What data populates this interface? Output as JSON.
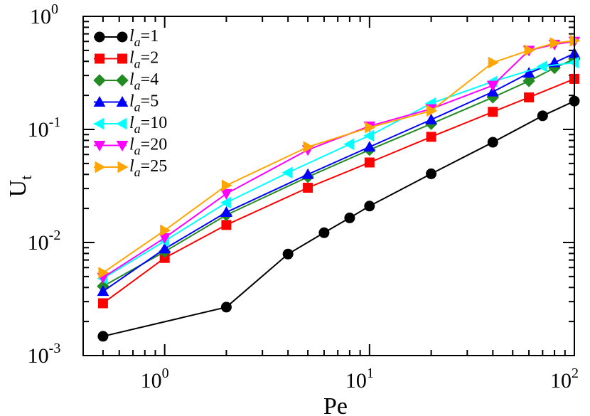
{
  "chart_data": {
    "type": "line",
    "x_scale": "log",
    "y_scale": "log",
    "xlabel": "Pe",
    "ylabel": {
      "main": "U",
      "sub": "t"
    },
    "xlim": [
      0.4,
      100
    ],
    "ylim": [
      0.001,
      1
    ],
    "x_ticks": [
      {
        "value": 1,
        "base": "10",
        "exp": "0"
      },
      {
        "value": 10,
        "base": "10",
        "exp": "1"
      },
      {
        "value": 100,
        "base": "10",
        "exp": "2"
      }
    ],
    "y_ticks": [
      {
        "value": 0.001,
        "base": "10",
        "exp": "-3"
      },
      {
        "value": 0.01,
        "base": "10",
        "exp": "-2"
      },
      {
        "value": 0.1,
        "base": "10",
        "exp": "-1"
      },
      {
        "value": 1,
        "base": "10",
        "exp": "0"
      }
    ],
    "legend_position": "top-left",
    "series": [
      {
        "name": "la=1",
        "legend_var": "l",
        "legend_sub": "a",
        "legend_value": "=1",
        "color": "#000000",
        "marker": "circle",
        "x": [
          0.5,
          2,
          4,
          6,
          8,
          10,
          20,
          40,
          70,
          100
        ],
        "y": [
          0.00148,
          0.00268,
          0.0079,
          0.0122,
          0.0165,
          0.021,
          0.0405,
          0.077,
          0.132,
          0.178
        ]
      },
      {
        "name": "la=2",
        "legend_var": "l",
        "legend_sub": "a",
        "legend_value": "=2",
        "color": "#ff0000",
        "marker": "square",
        "x": [
          0.5,
          1,
          2,
          5,
          10,
          20,
          40,
          60,
          100
        ],
        "y": [
          0.0029,
          0.0073,
          0.0143,
          0.0305,
          0.051,
          0.086,
          0.143,
          0.192,
          0.28
        ]
      },
      {
        "name": "la=4",
        "legend_var": "l",
        "legend_sub": "a",
        "legend_value": "=4",
        "color": "#228b22",
        "marker": "diamond",
        "x": [
          0.5,
          1,
          2,
          5,
          10,
          20,
          40,
          60,
          80,
          100
        ],
        "y": [
          0.0041,
          0.0083,
          0.0175,
          0.038,
          0.066,
          0.112,
          0.192,
          0.268,
          0.35,
          0.42
        ]
      },
      {
        "name": "la=5",
        "legend_var": "l",
        "legend_sub": "a",
        "legend_value": "=5",
        "color": "#0000ff",
        "marker": "triangle-up",
        "x": [
          0.5,
          1,
          2,
          5,
          10,
          20,
          40,
          60,
          80,
          100
        ],
        "y": [
          0.0037,
          0.0088,
          0.0185,
          0.04,
          0.07,
          0.122,
          0.215,
          0.315,
          0.39,
          0.47
        ]
      },
      {
        "name": "la=10",
        "legend_var": "l",
        "legend_sub": "a",
        "legend_value": "=10",
        "color": "#00ffff",
        "marker": "triangle-left",
        "x": [
          0.5,
          1,
          2,
          4,
          8,
          10,
          20,
          40,
          70,
          100
        ],
        "y": [
          0.0048,
          0.0103,
          0.0225,
          0.0415,
          0.074,
          0.088,
          0.17,
          0.265,
          0.36,
          0.39
        ]
      },
      {
        "name": "la=20",
        "legend_var": "l",
        "legend_sub": "a",
        "legend_value": "=20",
        "color": "#ff00ff",
        "marker": "triangle-down",
        "x": [
          0.5,
          1,
          2,
          5,
          10,
          20,
          40,
          60,
          80,
          100
        ],
        "y": [
          0.0049,
          0.011,
          0.027,
          0.066,
          0.107,
          0.152,
          0.245,
          0.5,
          0.565,
          0.6
        ]
      },
      {
        "name": "la=25",
        "legend_var": "l",
        "legend_sub": "a",
        "legend_value": "=25",
        "color": "#ffa500",
        "marker": "triangle-right",
        "x": [
          0.5,
          1,
          2,
          5,
          10,
          20,
          40,
          60,
          80,
          100
        ],
        "y": [
          0.0054,
          0.0128,
          0.032,
          0.07,
          0.104,
          0.146,
          0.39,
          0.5,
          0.58,
          0.61
        ]
      }
    ]
  }
}
